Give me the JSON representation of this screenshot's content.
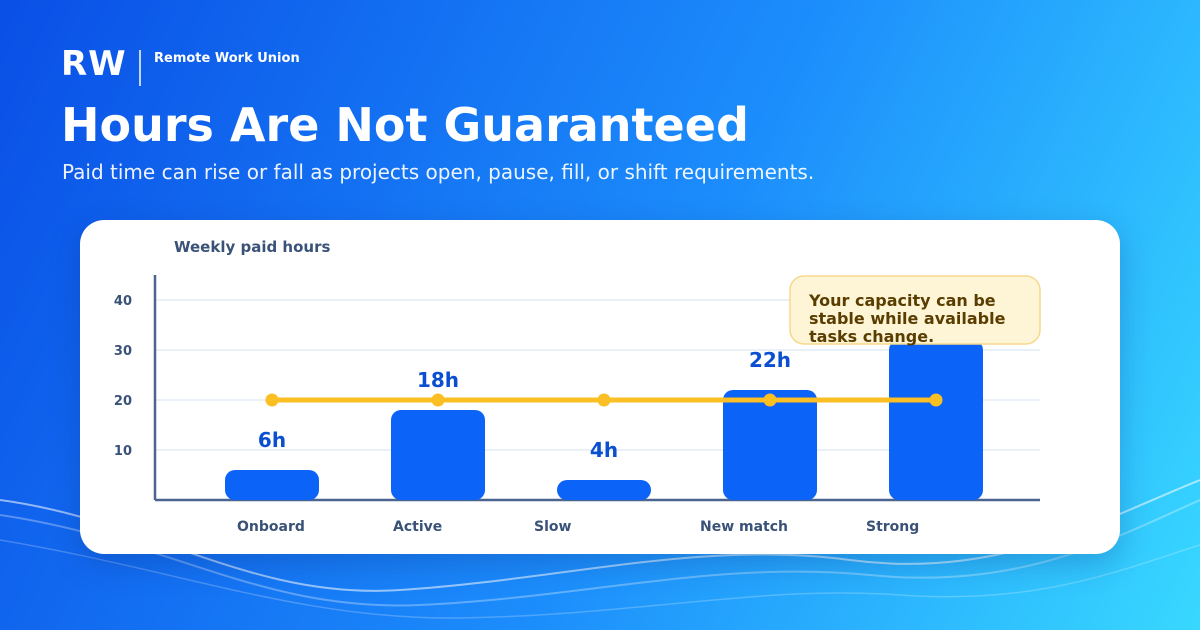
{
  "brand": {
    "logo_text": "RW",
    "org_name": "Remote Work Union"
  },
  "header": {
    "title": "Hours Are Not Guaranteed",
    "subtitle": "Paid time can rise or fall as projects open, pause, fill, or shift requirements."
  },
  "colors": {
    "bar": "#0b63f7",
    "line": "#fbbf24",
    "value_label": "#0b4fd0",
    "axis_text": "#3a5278",
    "callout_bg": "#fef5d6",
    "callout_border": "#f5d98a",
    "callout_text": "#5a3d00"
  },
  "chart_data": {
    "type": "bar",
    "title": "Weekly paid hours",
    "categories": [
      "Onboard",
      "Active",
      "Slow",
      "New match",
      "Strong"
    ],
    "values": [
      6,
      18,
      4,
      22,
      32
    ],
    "value_labels": [
      "6h",
      "18h",
      "4h",
      "22h",
      ""
    ],
    "reference_line": {
      "value": 20
    },
    "y_ticks": [
      10,
      20,
      30,
      40
    ],
    "ylim": [
      0,
      45
    ],
    "grid": true,
    "annotation": {
      "lines": [
        "Your capacity can be",
        "stable while available",
        "tasks change."
      ]
    }
  }
}
